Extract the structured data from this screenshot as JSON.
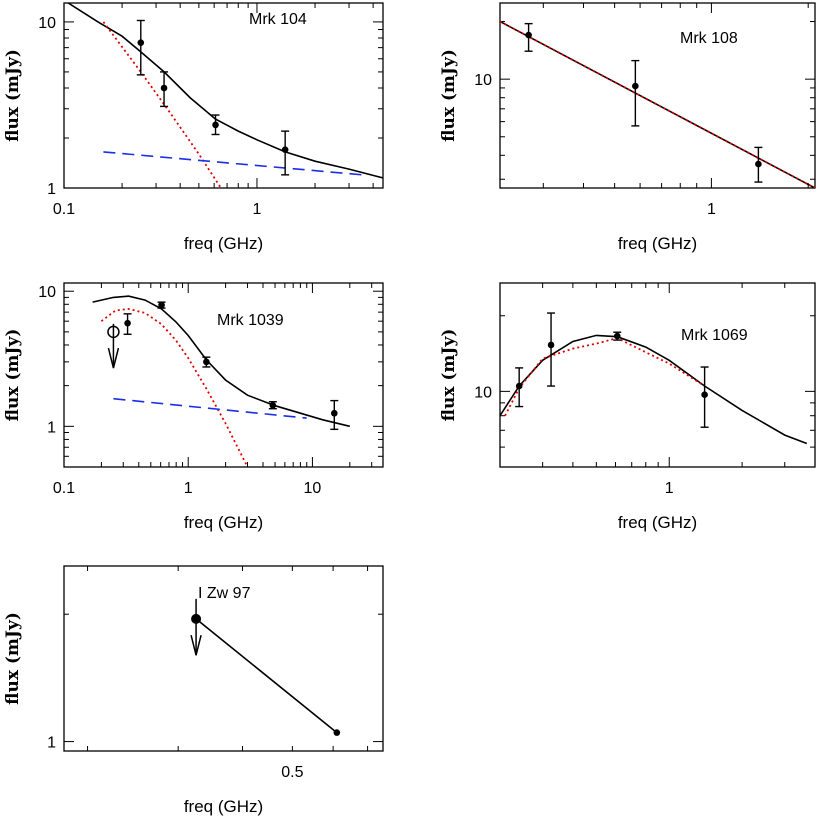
{
  "chart_data": [
    {
      "type": "scatter",
      "title": "Mrk 104",
      "xlabel": "freq (GHz)",
      "ylabel": "flux (mJy)",
      "xscale": "log",
      "yscale": "log",
      "xlim": [
        0.1,
        4.5
      ],
      "ylim": [
        1,
        13
      ],
      "xticks": [
        {
          "v": 0.1,
          "label": "0.1"
        },
        {
          "v": 1,
          "label": "1"
        }
      ],
      "yticks": [
        {
          "v": 1,
          "label": "1"
        },
        {
          "v": 10,
          "label": "10"
        }
      ],
      "points": [
        {
          "x": 0.25,
          "y": 7.5,
          "lo": 4.8,
          "hi": 10.2
        },
        {
          "x": 0.33,
          "y": 4.0,
          "lo": 3.1,
          "hi": 5.0
        },
        {
          "x": 0.61,
          "y": 2.4,
          "lo": 2.1,
          "hi": 2.75
        },
        {
          "x": 1.4,
          "y": 1.7,
          "lo": 1.2,
          "hi": 2.2
        }
      ],
      "arrows": [],
      "open_points": [],
      "series": [
        {
          "style": "black-solid",
          "x": [
            0.1,
            0.15,
            0.2,
            0.25,
            0.33,
            0.45,
            0.61,
            0.8,
            1.0,
            1.4,
            2.0,
            3.0,
            4.5
          ],
          "y": [
            13.5,
            10.0,
            8.2,
            6.6,
            5.0,
            3.5,
            2.6,
            2.2,
            1.95,
            1.65,
            1.45,
            1.3,
            1.15
          ]
        },
        {
          "style": "red-dotted",
          "x": [
            0.16,
            0.25,
            0.35,
            0.5,
            0.65
          ],
          "y": [
            10.0,
            5.0,
            2.9,
            1.6,
            1.0
          ]
        },
        {
          "style": "blue-dashed",
          "x": [
            0.16,
            3.5
          ],
          "y": [
            1.65,
            1.2
          ]
        }
      ]
    },
    {
      "type": "scatter",
      "title": "Mrk 108",
      "xlabel": "freq (GHz)",
      "ylabel": "flux (mJy)",
      "xscale": "log",
      "yscale": "log",
      "xlim": [
        0.22,
        2.1
      ],
      "ylim": [
        2.7,
        25
      ],
      "xticks": [
        {
          "v": 1,
          "label": "1"
        }
      ],
      "yticks": [
        {
          "v": 10,
          "label": "10"
        }
      ],
      "points": [
        {
          "x": 0.27,
          "y": 17.0,
          "lo": 14.0,
          "hi": 19.5
        },
        {
          "x": 0.58,
          "y": 9.2,
          "lo": 5.7,
          "hi": 12.5
        },
        {
          "x": 1.4,
          "y": 3.6,
          "lo": 2.9,
          "hi": 4.4
        }
      ],
      "arrows": [],
      "open_points": [],
      "series": [
        {
          "style": "black-solid",
          "x": [
            0.22,
            2.1
          ],
          "y": [
            20.0,
            2.7
          ]
        },
        {
          "style": "red-dotted",
          "x": [
            0.22,
            2.1
          ],
          "y": [
            20.0,
            2.7
          ]
        }
      ]
    },
    {
      "type": "scatter",
      "title": "Mrk 1039",
      "xlabel": "freq (GHz)",
      "ylabel": "flux (mJy)",
      "xscale": "log",
      "yscale": "log",
      "xlim": [
        0.1,
        37
      ],
      "ylim": [
        0.5,
        11.5
      ],
      "xticks": [
        {
          "v": 0.1,
          "label": "0.1"
        },
        {
          "v": 1,
          "label": "1"
        },
        {
          "v": 10,
          "label": "10"
        }
      ],
      "yticks": [
        {
          "v": 1,
          "label": "1"
        },
        {
          "v": 10,
          "label": "10"
        }
      ],
      "points": [
        {
          "x": 0.325,
          "y": 5.8,
          "lo": 4.8,
          "hi": 6.8
        },
        {
          "x": 0.61,
          "y": 7.9,
          "lo": 7.5,
          "hi": 8.3
        },
        {
          "x": 1.4,
          "y": 3.0,
          "lo": 2.75,
          "hi": 3.25
        },
        {
          "x": 4.8,
          "y": 1.43,
          "lo": 1.35,
          "hi": 1.52
        },
        {
          "x": 15.0,
          "y": 1.25,
          "lo": 0.95,
          "hi": 1.55
        }
      ],
      "arrows": [
        {
          "x": 0.25,
          "y": 5.0,
          "to": 2.7
        }
      ],
      "open_points": [
        {
          "x": 0.25,
          "y": 5.0
        }
      ],
      "series": [
        {
          "style": "black-solid",
          "x": [
            0.17,
            0.25,
            0.33,
            0.45,
            0.61,
            0.8,
            1.0,
            1.4,
            2.0,
            3.0,
            5.0,
            8.0,
            12.0,
            20.0
          ],
          "y": [
            8.3,
            9.0,
            9.2,
            8.6,
            7.4,
            5.9,
            4.7,
            3.1,
            2.2,
            1.7,
            1.42,
            1.25,
            1.12,
            1.0
          ]
        },
        {
          "style": "red-dotted",
          "x": [
            0.2,
            0.26,
            0.33,
            0.45,
            0.61,
            0.8,
            1.0,
            1.4,
            2.0,
            2.6,
            3.0
          ],
          "y": [
            6.0,
            7.2,
            7.4,
            6.9,
            5.7,
            4.3,
            3.2,
            1.9,
            1.05,
            0.65,
            0.5
          ]
        },
        {
          "style": "blue-dashed",
          "x": [
            0.25,
            9.0
          ],
          "y": [
            1.6,
            1.15
          ]
        }
      ]
    },
    {
      "type": "scatter",
      "title": "Mrk 1069",
      "xlabel": "freq (GHz)",
      "ylabel": "flux (mJy)",
      "xscale": "log",
      "yscale": "log",
      "xlim": [
        0.2,
        4.0
      ],
      "ylim": [
        5,
        27
      ],
      "xticks": [
        {
          "v": 1,
          "label": "1"
        }
      ],
      "yticks": [
        {
          "v": 10,
          "label": "10"
        }
      ],
      "points": [
        {
          "x": 0.24,
          "y": 10.5,
          "lo": 8.7,
          "hi": 12.4
        },
        {
          "x": 0.325,
          "y": 15.3,
          "lo": 10.5,
          "hi": 20.5
        },
        {
          "x": 0.61,
          "y": 16.6,
          "lo": 16.0,
          "hi": 17.2
        },
        {
          "x": 1.4,
          "y": 9.7,
          "lo": 7.2,
          "hi": 12.5
        }
      ],
      "arrows": [],
      "open_points": [],
      "series": [
        {
          "style": "black-solid",
          "x": [
            0.2,
            0.24,
            0.3,
            0.4,
            0.5,
            0.61,
            0.8,
            1.0,
            1.4,
            2.0,
            3.0,
            3.7
          ],
          "y": [
            8.0,
            10.5,
            13.3,
            15.8,
            16.7,
            16.5,
            15.0,
            13.3,
            10.5,
            8.4,
            6.7,
            6.2
          ]
        },
        {
          "style": "red-dotted",
          "x": [
            0.21,
            0.24,
            0.3,
            0.4,
            0.5,
            0.61,
            0.8,
            1.0,
            1.4
          ],
          "y": [
            8.0,
            10.3,
            13.5,
            14.8,
            15.5,
            16.3,
            14.3,
            12.9,
            10.5
          ]
        }
      ]
    },
    {
      "type": "scatter",
      "title": "I Zw 97",
      "xlabel": "freq (GHz)",
      "ylabel": "flux (mJy)",
      "xscale": "log",
      "yscale": "log",
      "xlim": [
        0.18,
        0.75
      ],
      "ylim": [
        0.95,
        2.6
      ],
      "xticks": [
        {
          "v": 0.5,
          "label": "0.5"
        }
      ],
      "yticks": [
        {
          "v": 1,
          "label": "1"
        }
      ],
      "points": [
        {
          "x": 0.61,
          "y": 1.05,
          "lo": 1.05,
          "hi": 1.05
        }
      ],
      "arrows": [
        {
          "x": 0.325,
          "y": 1.95,
          "to": 1.6
        }
      ],
      "big_points": [
        {
          "x": 0.325,
          "y": 1.95
        }
      ],
      "open_points": [],
      "series": [
        {
          "style": "black-solid",
          "x": [
            0.325,
            0.61
          ],
          "y": [
            1.95,
            1.05
          ]
        }
      ]
    }
  ]
}
